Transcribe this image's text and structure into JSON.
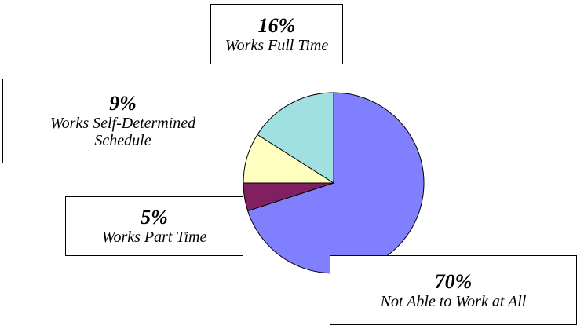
{
  "chart_data": {
    "type": "pie",
    "categories": [
      "Not Able to Work at All",
      "Works Part Time",
      "Works Self-Determined Schedule",
      "Works Full Time"
    ],
    "values": [
      70,
      5,
      9,
      16
    ],
    "value_labels": [
      "70%",
      "5%",
      "9%",
      "16%"
    ],
    "colors": [
      "#8080ff",
      "#802060",
      "#ffffc0",
      "#a0e0e0"
    ]
  }
}
